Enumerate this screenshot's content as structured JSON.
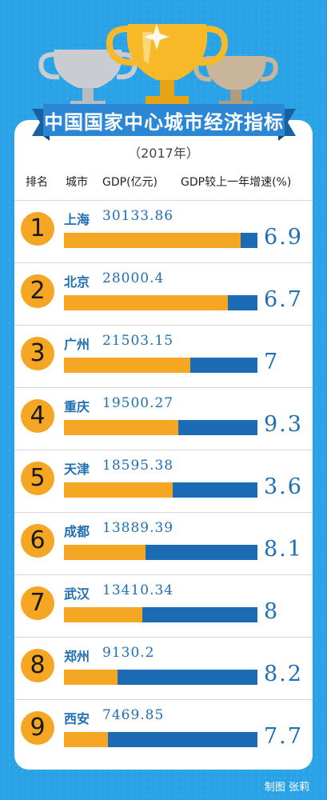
{
  "title": "中国国家中心城市经济指标",
  "year": "（2017年）",
  "headers": {
    "rank": "排名",
    "city": "城市",
    "gdp": "GDP(亿元)",
    "growth": "GDP较上一年增速(%)"
  },
  "credit": "制图 张莉",
  "colors": {
    "background": "#2aa3e6",
    "bar_gdp": "#f5a623",
    "bar_track": "#1c6bb5",
    "text_accent": "#1f6fb5",
    "rank_circle": "#f5a623"
  },
  "chart_data": {
    "type": "bar",
    "orientation": "horizontal",
    "title": "中国国家中心城市经济指标",
    "subtitle": "（2017年）",
    "categories": [
      "上海",
      "北京",
      "广州",
      "重庆",
      "天津",
      "成都",
      "武汉",
      "郑州",
      "西安"
    ],
    "series": [
      {
        "name": "GDP(亿元)",
        "values": [
          30133.86,
          28000.4,
          21503.15,
          19500.27,
          18595.38,
          13889.39,
          13410.34,
          9130.2,
          7469.85
        ],
        "labels": [
          "30133.86",
          "28000.4",
          "21503.15",
          "19500.27",
          "18595.38",
          "13889.39",
          "13410.34",
          "9130.2",
          "7469.85"
        ]
      },
      {
        "name": "GDP较上一年增速(%)",
        "values": [
          6.9,
          6.7,
          7,
          9.3,
          3.6,
          8.1,
          8,
          8.2,
          7.7
        ],
        "labels": [
          "6.9",
          "6.7",
          "7",
          "9.3",
          "3.6",
          "8.1",
          "8",
          "8.2",
          "7.7"
        ]
      }
    ],
    "ranks": [
      "1",
      "2",
      "3",
      "4",
      "5",
      "6",
      "7",
      "8",
      "9"
    ],
    "xlim": [
      0,
      33000
    ]
  }
}
